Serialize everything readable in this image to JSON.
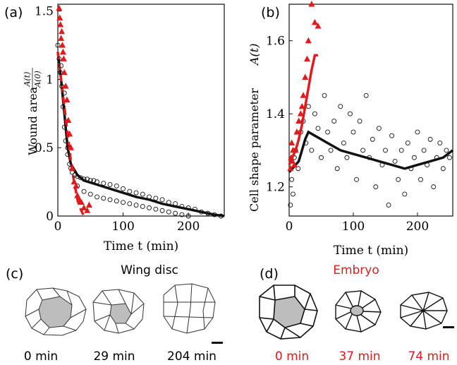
{
  "chart_data": [
    {
      "panel": "(a)",
      "type": "scatter",
      "xlabel": "Time t (min)",
      "ylabel": "Wound area",
      "ylabel_fraction_num": "A(t)",
      "ylabel_fraction_den": "A(0)",
      "xlim": [
        0,
        255
      ],
      "ylim": [
        0,
        1.55
      ],
      "xticks": [
        0,
        100,
        200
      ],
      "yticks": [
        0,
        0.5,
        1,
        1.5
      ],
      "ytick_labels": [
        "0",
        "0.5",
        "1",
        "1.5"
      ],
      "series": [
        {
          "marker": "circle",
          "color": "#111111",
          "x": [
            0,
            2,
            4,
            6,
            8,
            10,
            12,
            15,
            18,
            22,
            26,
            30,
            35,
            40,
            45,
            50,
            55,
            60,
            70,
            80,
            90,
            100,
            110,
            120,
            130,
            140,
            150,
            160,
            170,
            180,
            190,
            200,
            210,
            220,
            230,
            240,
            250
          ],
          "y": [
            1.25,
            1.15,
            1.05,
            0.95,
            0.8,
            0.65,
            0.55,
            0.45,
            0.38,
            0.32,
            0.3,
            0.29,
            0.28,
            0.27,
            0.27,
            0.26,
            0.26,
            0.25,
            0.24,
            0.23,
            0.22,
            0.2,
            0.18,
            0.17,
            0.16,
            0.14,
            0.13,
            0.12,
            0.1,
            0.09,
            0.07,
            0.06,
            0.05,
            0.03,
            0.02,
            0.01,
            0.0
          ]
        },
        {
          "marker": "circle",
          "color": "#111111",
          "x": [
            5,
            10,
            15,
            20,
            30,
            40,
            50,
            60,
            70,
            80,
            90,
            100,
            110,
            120,
            130,
            140,
            150,
            160,
            170,
            180,
            190,
            200
          ],
          "y": [
            1.1,
            0.9,
            0.5,
            0.35,
            0.22,
            0.18,
            0.16,
            0.14,
            0.13,
            0.12,
            0.11,
            0.1,
            0.09,
            0.08,
            0.07,
            0.06,
            0.05,
            0.04,
            0.03,
            0.02,
            0.01,
            0.0
          ]
        },
        {
          "marker": "triangle",
          "color": "#e31a1c",
          "x": [
            2,
            3,
            4,
            5,
            6,
            7,
            8,
            9,
            10,
            12,
            14,
            16,
            18,
            20,
            22,
            25,
            28,
            30,
            33,
            36,
            40,
            45,
            48
          ],
          "y": [
            1.52,
            1.45,
            1.4,
            1.3,
            1.35,
            1.25,
            1.2,
            1.15,
            1.05,
            0.95,
            0.85,
            0.7,
            0.6,
            0.5,
            0.35,
            0.25,
            0.22,
            0.15,
            0.12,
            0.1,
            0.06,
            0.04,
            0.08
          ]
        }
      ],
      "fit_lines": [
        {
          "color": "#111111",
          "style": "solid",
          "x": [
            0,
            5,
            10,
            15,
            20,
            30,
            40,
            60,
            80,
            100,
            120,
            140,
            160,
            180,
            200,
            220,
            240,
            255
          ],
          "y": [
            1.2,
            1.0,
            0.75,
            0.5,
            0.38,
            0.3,
            0.26,
            0.23,
            0.2,
            0.17,
            0.14,
            0.12,
            0.09,
            0.07,
            0.05,
            0.03,
            0.01,
            0.0
          ]
        },
        {
          "color": "#e31a1c",
          "style": "dashed",
          "x": [
            0,
            5,
            10,
            15,
            20,
            25,
            30,
            35,
            40
          ],
          "y": [
            1.2,
            1.0,
            0.8,
            0.6,
            0.4,
            0.25,
            0.12,
            0.05,
            0.0
          ]
        }
      ]
    },
    {
      "panel": "(b)",
      "type": "scatter",
      "xlabel": "Time t (min)",
      "ylabel": "Cell shape parameter",
      "ylabel_symbol": "A(t)",
      "xlim": [
        0,
        255
      ],
      "ylim": [
        1.12,
        1.7
      ],
      "xticks": [
        0,
        100,
        200
      ],
      "yticks": [
        1.2,
        1.4,
        1.6
      ],
      "series": [
        {
          "marker": "circle",
          "color": "#111111",
          "x": [
            2,
            4,
            6,
            8,
            10,
            14,
            18,
            22,
            26,
            30,
            35,
            40,
            45,
            50,
            55,
            60,
            65,
            70,
            75,
            80,
            85,
            90,
            95,
            100,
            105,
            110,
            115,
            120,
            125,
            130,
            135,
            140,
            145,
            150,
            155,
            160,
            165,
            170,
            175,
            180,
            185,
            190,
            195,
            200,
            205,
            210,
            215,
            220,
            225,
            230,
            235,
            240,
            245,
            250
          ],
          "y": [
            1.15,
            1.22,
            1.18,
            1.28,
            1.3,
            1.25,
            1.35,
            1.38,
            1.32,
            1.42,
            1.3,
            1.4,
            1.36,
            1.28,
            1.45,
            1.35,
            1.3,
            1.38,
            1.25,
            1.42,
            1.32,
            1.28,
            1.4,
            1.35,
            1.22,
            1.38,
            1.3,
            1.45,
            1.28,
            1.33,
            1.2,
            1.36,
            1.26,
            1.3,
            1.15,
            1.34,
            1.27,
            1.22,
            1.3,
            1.18,
            1.32,
            1.25,
            1.28,
            1.35,
            1.22,
            1.3,
            1.26,
            1.33,
            1.2,
            1.28,
            1.32,
            1.25,
            1.3,
            1.28
          ]
        }
      ],
      "fit_lines": [
        {
          "color": "#111111",
          "style": "solid",
          "x": [
            0,
            5,
            10,
            15,
            20,
            25,
            30,
            40,
            50,
            60,
            80,
            100,
            120,
            140,
            160,
            180,
            200,
            220,
            240,
            255
          ],
          "y": [
            1.24,
            1.25,
            1.26,
            1.27,
            1.3,
            1.33,
            1.35,
            1.34,
            1.33,
            1.32,
            1.3,
            1.29,
            1.28,
            1.27,
            1.26,
            1.25,
            1.26,
            1.27,
            1.28,
            1.3
          ]
        },
        {
          "color": "#e31a1c",
          "style": "solid",
          "x": [
            0,
            5,
            10,
            15,
            20,
            25,
            30,
            35,
            40,
            45
          ],
          "y": [
            1.26,
            1.28,
            1.3,
            1.33,
            1.37,
            1.42,
            1.47,
            1.52,
            1.56,
            1.56
          ]
        }
      ],
      "red_points": {
        "marker": "triangle",
        "color": "#e31a1c",
        "x": [
          2,
          3,
          4,
          5,
          6,
          8,
          10,
          12,
          15,
          18,
          20,
          22,
          25,
          28,
          30,
          35,
          40,
          45
        ],
        "y": [
          1.25,
          1.28,
          1.32,
          1.27,
          1.3,
          1.26,
          1.3,
          1.35,
          1.38,
          1.4,
          1.42,
          1.45,
          1.5,
          1.55,
          1.6,
          1.7,
          1.65,
          1.64
        ]
      }
    }
  ],
  "panels": {
    "c": {
      "label": "(c)",
      "title": "Wing disc",
      "times": [
        "0 min",
        "29 min",
        "204 min"
      ]
    },
    "d": {
      "label": "(d)",
      "title": "Embryo",
      "times": [
        "0 min",
        "37 min",
        "74 min"
      ]
    },
    "a_label": "(a)",
    "b_label": "(b)"
  },
  "colors": {
    "red": "#e31a1c",
    "black": "#111111",
    "wound_fill": "#bdbdbd"
  }
}
